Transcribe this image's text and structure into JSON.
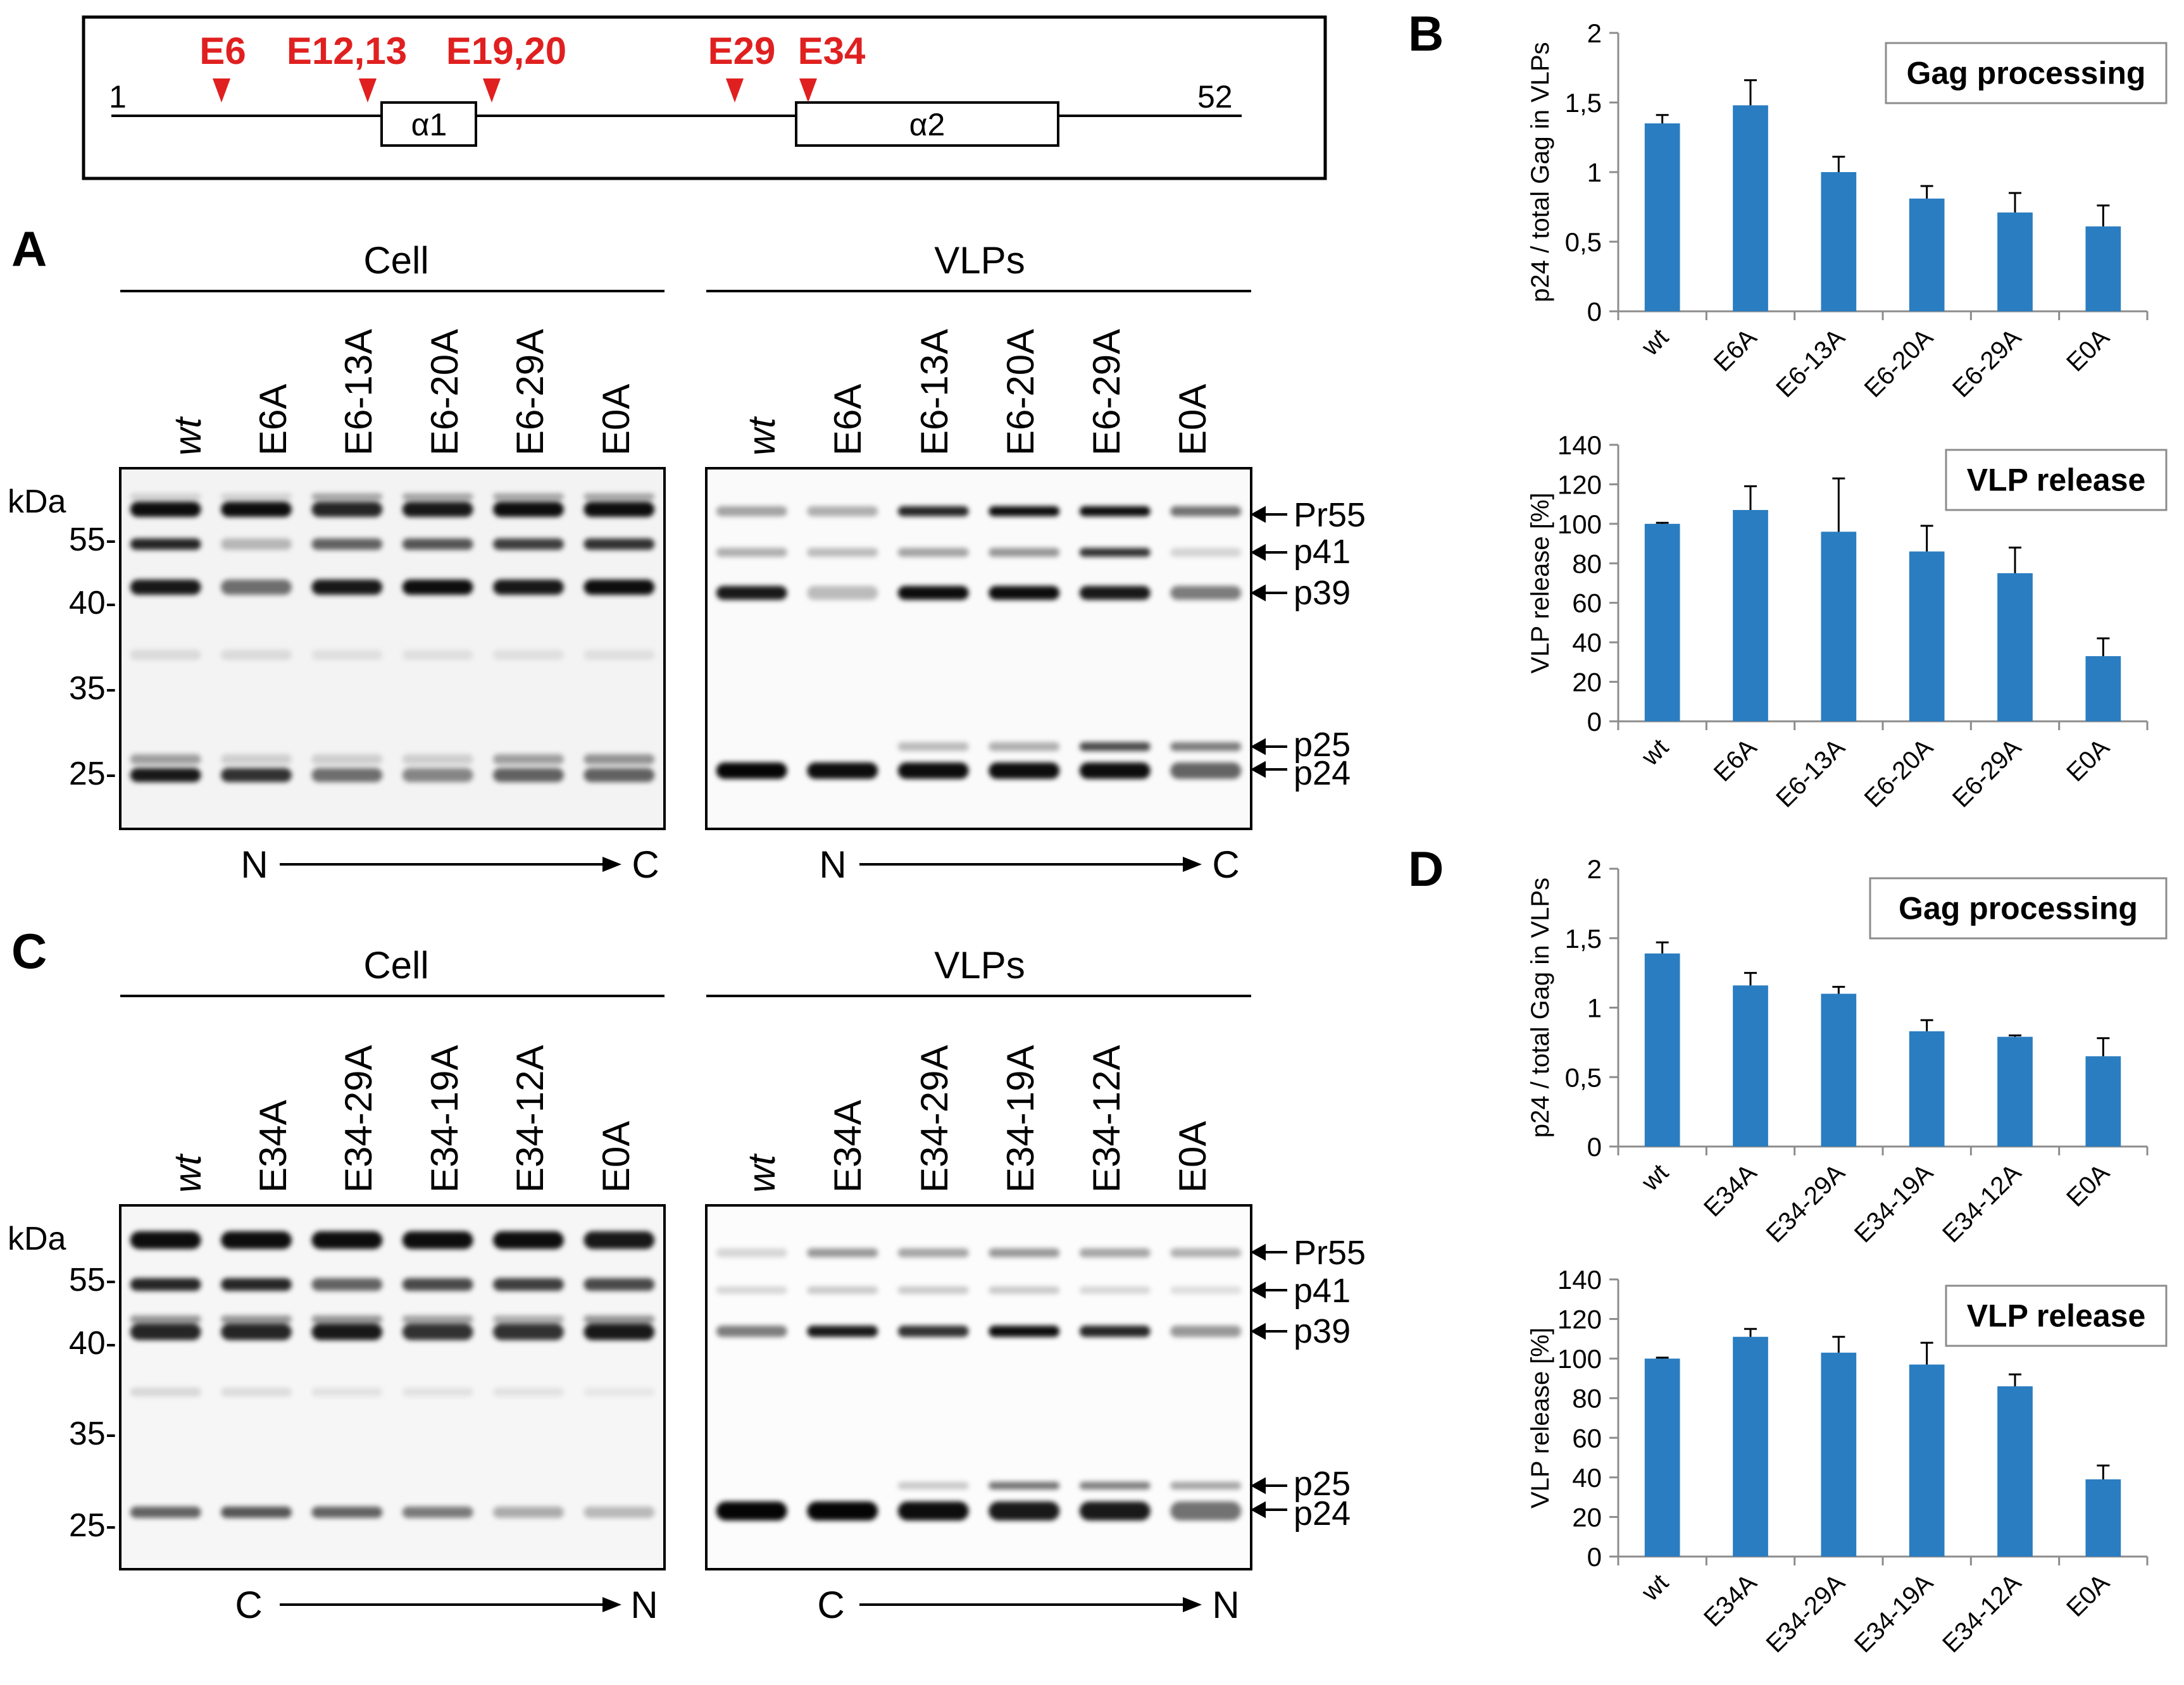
{
  "schematic": {
    "start": "1",
    "end": "52",
    "helix1": "α1",
    "helix2": "α2",
    "sites": [
      "E6",
      "E12,13",
      "E19,20",
      "E29",
      "E34"
    ]
  },
  "panels": {
    "A": "A",
    "B": "B",
    "C": "C",
    "D": "D"
  },
  "blot_top": {
    "cell_title": "Cell",
    "vlp_title": "VLPs",
    "lanes": [
      "wt",
      "E6A",
      "E6-13A",
      "E6-20A",
      "E6-29A",
      "E0A"
    ],
    "kda": "kDa",
    "markers": [
      "55-",
      "40-",
      "35-",
      "25-"
    ],
    "bands": [
      "Pr55",
      "p41",
      "p39",
      "p25",
      "p24"
    ],
    "dir_start": "N",
    "dir_end": "C"
  },
  "blot_bottom": {
    "cell_title": "Cell",
    "vlp_title": "VLPs",
    "lanes": [
      "wt",
      "E34A",
      "E34-29A",
      "E34-19A",
      "E34-12A",
      "E0A"
    ],
    "kda": "kDa",
    "markers": [
      "55-",
      "40-",
      "35-",
      "25-"
    ],
    "bands": [
      "Pr55",
      "p41",
      "p39",
      "p25",
      "p24"
    ],
    "dir_start": "C",
    "dir_end": "N"
  },
  "chart_data": [
    {
      "id": "B-gag",
      "type": "bar",
      "title": "Gag processing",
      "ylabel": "p24 / total Gag in VLPs",
      "ylim": [
        0,
        2
      ],
      "yticks": [
        "0",
        "0,5",
        "1",
        "1,5",
        "2"
      ],
      "categories": [
        "wt",
        "E6A",
        "E6-13A",
        "E6-20A",
        "E6-29A",
        "E0A"
      ],
      "values": [
        1.35,
        1.48,
        1.0,
        0.81,
        0.71,
        0.61
      ],
      "errors": [
        0.06,
        0.18,
        0.11,
        0.09,
        0.14,
        0.15
      ],
      "color": "#2A7DC1"
    },
    {
      "id": "B-vlp",
      "type": "bar",
      "title": "VLP release",
      "ylabel": "VLP release [%]",
      "ylim": [
        0,
        140
      ],
      "yticks": [
        "0",
        "20",
        "40",
        "60",
        "80",
        "100",
        "120",
        "140"
      ],
      "categories": [
        "wt",
        "E6A",
        "E6-13A",
        "E6-20A",
        "E6-29A",
        "E0A"
      ],
      "values": [
        100,
        107,
        96,
        86,
        75,
        33
      ],
      "errors": [
        0.5,
        12,
        27,
        13,
        13,
        9
      ],
      "color": "#2A7DC1"
    },
    {
      "id": "D-gag",
      "type": "bar",
      "title": "Gag processing",
      "ylabel": "p24 / total Gag in VLPs",
      "ylim": [
        0,
        2
      ],
      "yticks": [
        "0",
        "0,5",
        "1",
        "1,5",
        "2"
      ],
      "categories": [
        "wt",
        "E34A",
        "E34-29A",
        "E34-19A",
        "E34-12A",
        "E0A"
      ],
      "values": [
        1.39,
        1.16,
        1.1,
        0.83,
        0.79,
        0.65
      ],
      "errors": [
        0.08,
        0.09,
        0.05,
        0.08,
        0.01,
        0.13
      ],
      "color": "#2A7DC1"
    },
    {
      "id": "D-vlp",
      "type": "bar",
      "title": "VLP release",
      "ylabel": "VLP release  [%]",
      "ylim": [
        0,
        140
      ],
      "yticks": [
        "0",
        "20",
        "40",
        "60",
        "80",
        "100",
        "120",
        "140"
      ],
      "categories": [
        "wt",
        "E34A",
        "E34-29A",
        "E34-19A",
        "E34-12A",
        "E0A"
      ],
      "values": [
        100,
        111,
        103,
        97,
        86,
        39
      ],
      "errors": [
        0.5,
        4,
        8,
        11,
        6,
        7
      ],
      "color": "#2A7DC1"
    }
  ]
}
